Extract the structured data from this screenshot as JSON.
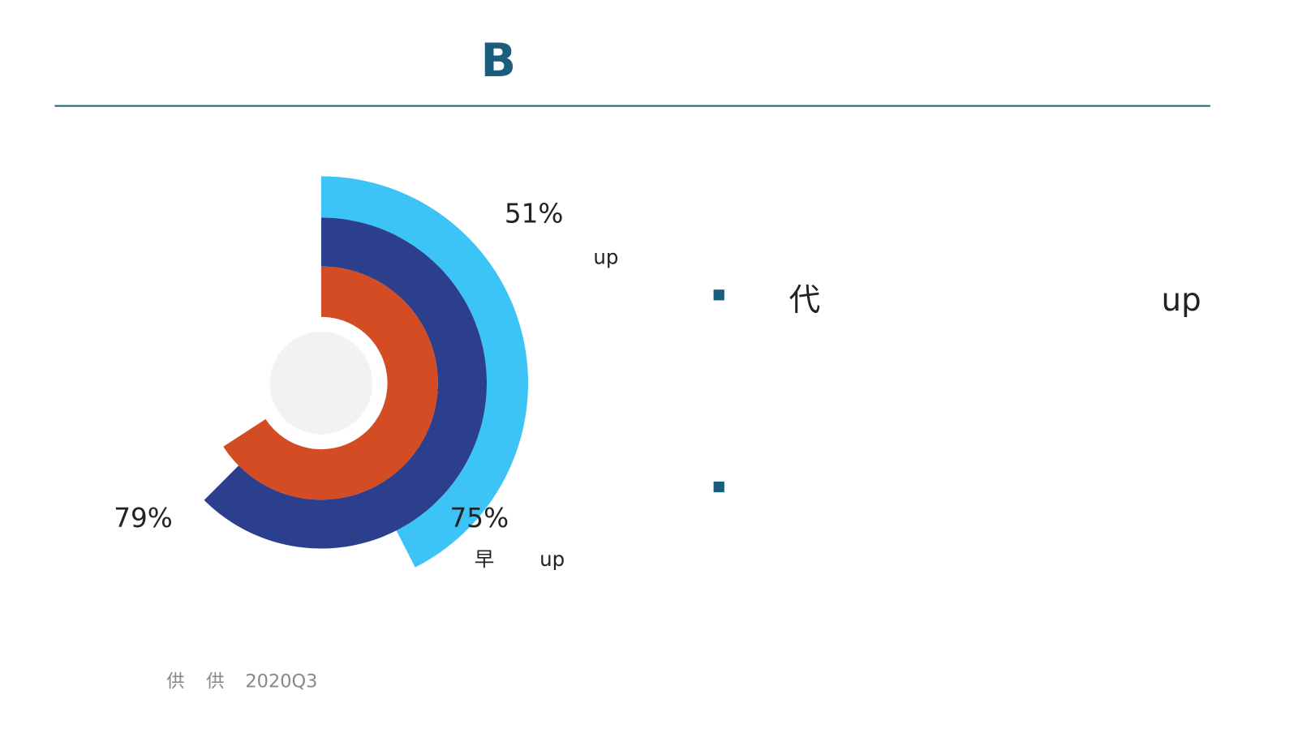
{
  "title": "B",
  "chart_data": {
    "type": "radial-bar",
    "values": [
      51,
      75,
      79
    ],
    "value_labels": [
      "51%",
      "75%",
      "79%"
    ],
    "colors": [
      "#3bc4f5",
      "#2b3f8c",
      "#d34c24"
    ],
    "ylim": [
      0,
      120
    ],
    "notes": [
      "up",
      "早",
      "up"
    ]
  },
  "bullets": [
    [
      "代",
      "up"
    ]
  ],
  "source": [
    "供",
    "供",
    "2020Q3"
  ]
}
